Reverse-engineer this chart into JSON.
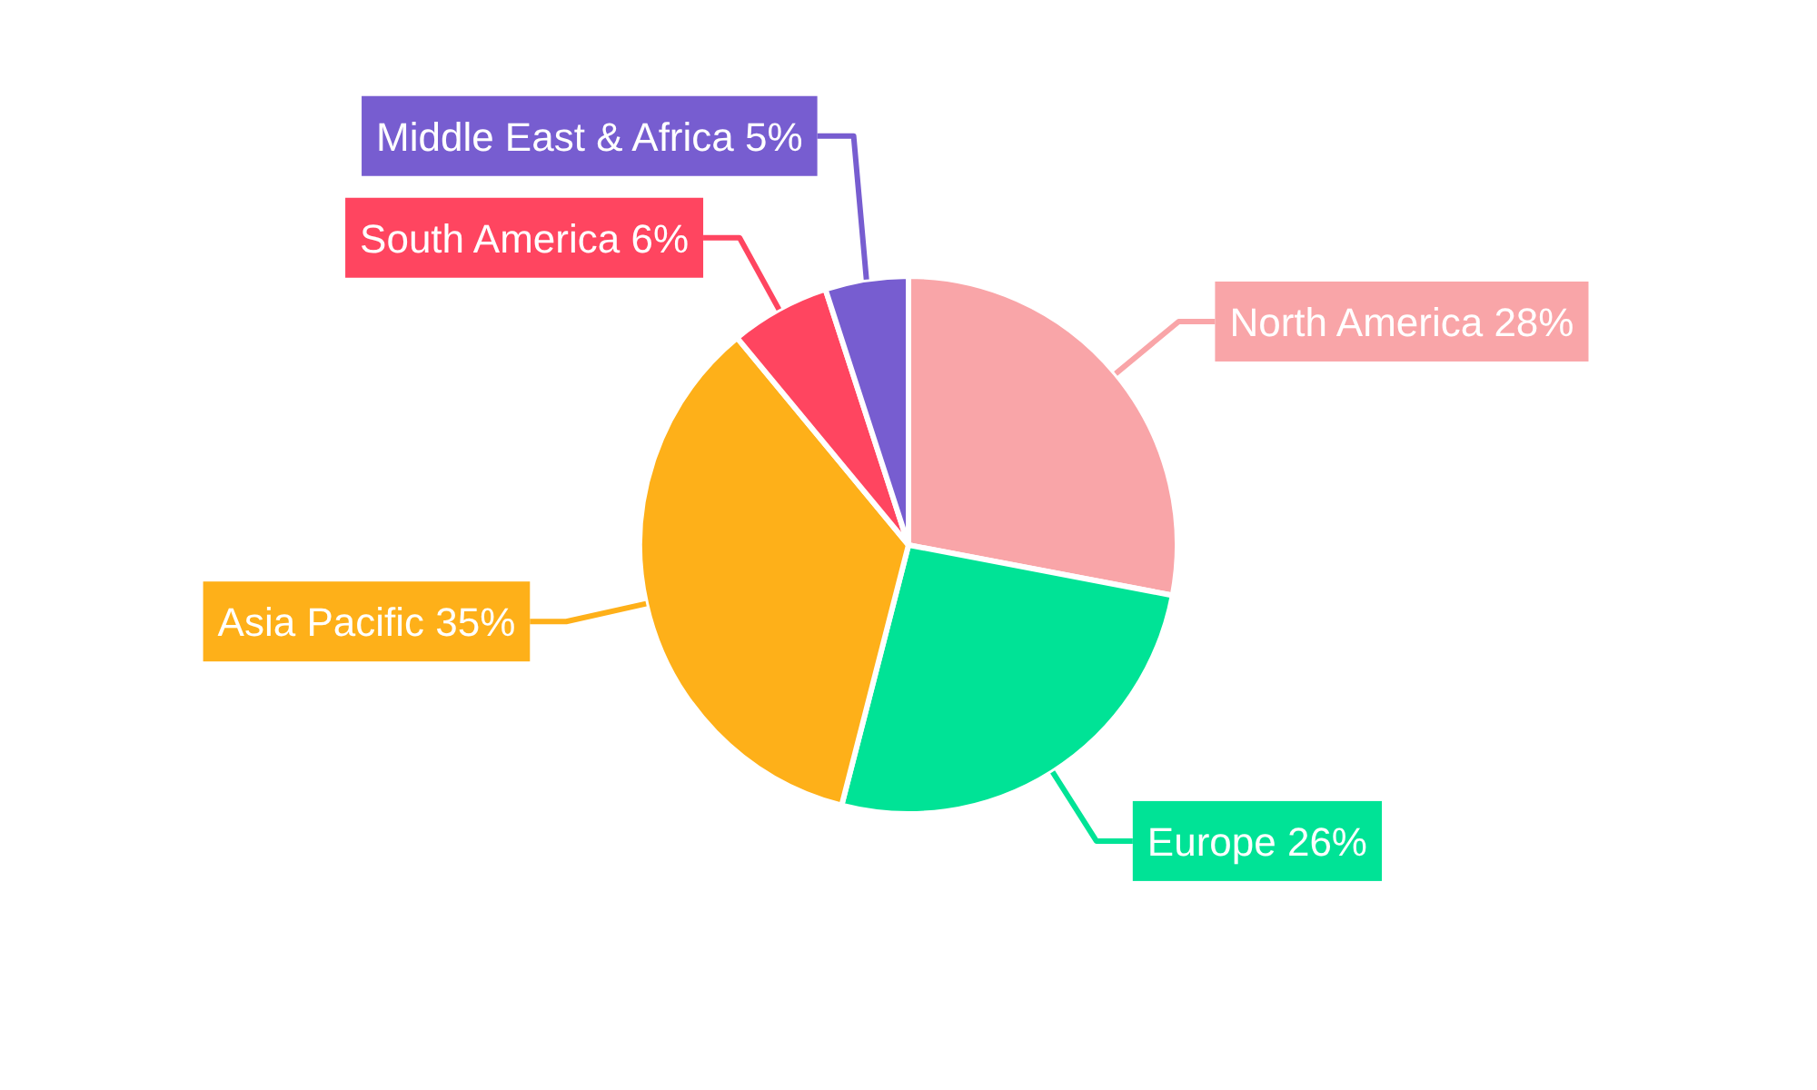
{
  "chart_data": {
    "type": "pie",
    "categories": [
      "North America",
      "Europe",
      "Asia Pacific",
      "South America",
      "Middle East & Africa"
    ],
    "values": [
      28,
      26,
      35,
      6,
      5
    ],
    "value_labels": [
      "28%",
      "26%",
      "35%",
      "6%",
      "5%"
    ],
    "colors": [
      "#f9a5a8",
      "#00e396",
      "#feb019",
      "#ff4560",
      "#775dd0"
    ]
  }
}
